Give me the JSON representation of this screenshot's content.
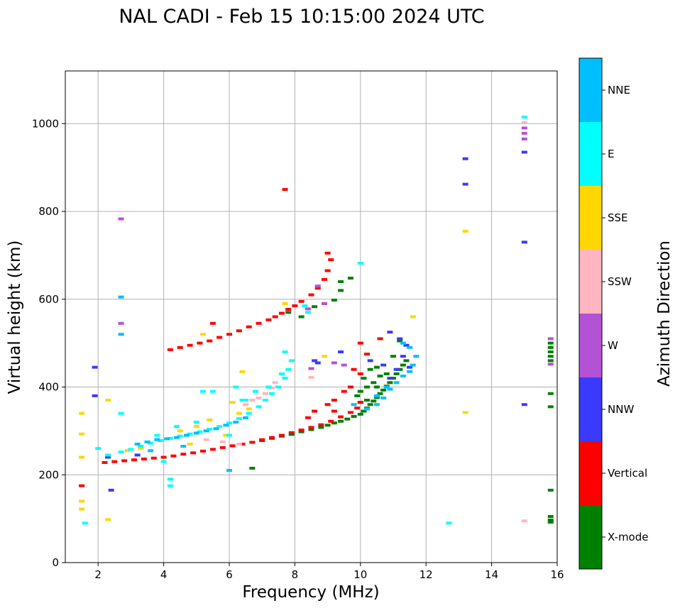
{
  "chart_data": {
    "type": "scatter",
    "title": "NAL CADI - Feb 15 10:15:00 2024 UTC",
    "xlabel": "Frequency (MHz)",
    "ylabel": "Virtual height (km)",
    "xlim": [
      1,
      16
    ],
    "ylim": [
      0,
      1120
    ],
    "xticks": [
      2,
      4,
      6,
      8,
      10,
      12,
      14,
      16
    ],
    "yticks": [
      0,
      200,
      400,
      600,
      800,
      1000
    ],
    "grid": true,
    "colorbar": {
      "label": "Azimuth Direction",
      "categories": [
        "X-mode",
        "Vertical",
        "NNW",
        "W",
        "SSW",
        "SSE",
        "E",
        "NNE"
      ],
      "colors": [
        "#008000",
        "#ff0000",
        "#3a3aff",
        "#b452d6",
        "#ffb6c1",
        "#ffd700",
        "#00ffff",
        "#00bfff"
      ]
    },
    "series": [
      {
        "name": "X-mode",
        "color": "#008000",
        "points": [
          [
            7.0,
            278
          ],
          [
            7.3,
            283
          ],
          [
            7.6,
            288
          ],
          [
            7.9,
            292
          ],
          [
            8.2,
            298
          ],
          [
            8.5,
            303
          ],
          [
            8.8,
            308
          ],
          [
            9.0,
            313
          ],
          [
            9.2,
            318
          ],
          [
            9.4,
            322
          ],
          [
            9.6,
            327
          ],
          [
            9.8,
            333
          ],
          [
            10.0,
            338
          ],
          [
            10.1,
            345
          ],
          [
            10.2,
            352
          ],
          [
            10.3,
            360
          ],
          [
            10.4,
            368
          ],
          [
            10.5,
            376
          ],
          [
            10.6,
            385
          ],
          [
            10.7,
            393
          ],
          [
            10.8,
            402
          ],
          [
            10.9,
            410
          ],
          [
            11.0,
            420
          ],
          [
            11.1,
            430
          ],
          [
            11.2,
            440
          ],
          [
            11.3,
            450
          ],
          [
            11.4,
            460
          ],
          [
            10.0,
            365
          ],
          [
            10.2,
            370
          ],
          [
            10.5,
            400
          ],
          [
            10.8,
            430
          ],
          [
            11.0,
            470
          ],
          [
            11.2,
            505
          ],
          [
            10.5,
            445
          ],
          [
            10.3,
            440
          ],
          [
            10.1,
            420
          ],
          [
            9.9,
            380
          ],
          [
            10.0,
            390
          ],
          [
            10.4,
            410
          ],
          [
            10.6,
            425
          ],
          [
            10.2,
            400
          ],
          [
            8.6,
            583
          ],
          [
            8.9,
            590
          ],
          [
            9.2,
            598
          ],
          [
            9.4,
            620
          ],
          [
            9.4,
            640
          ],
          [
            9.7,
            648
          ],
          [
            8.2,
            560
          ],
          [
            7.8,
            570
          ],
          [
            6.7,
            215
          ],
          [
            15.8,
            480
          ],
          [
            15.8,
            490
          ],
          [
            15.8,
            500
          ],
          [
            15.8,
            470
          ],
          [
            15.8,
            460
          ],
          [
            15.8,
            385
          ],
          [
            15.8,
            355
          ],
          [
            15.8,
            165
          ],
          [
            15.8,
            105
          ],
          [
            15.8,
            97
          ],
          [
            15.8,
            92
          ]
        ]
      },
      {
        "name": "Vertical",
        "color": "#ff0000",
        "points": [
          [
            2.2,
            228
          ],
          [
            2.5,
            230
          ],
          [
            2.8,
            232
          ],
          [
            3.1,
            234
          ],
          [
            3.4,
            236
          ],
          [
            3.7,
            238
          ],
          [
            4.0,
            240
          ],
          [
            4.3,
            243
          ],
          [
            4.6,
            247
          ],
          [
            4.9,
            250
          ],
          [
            5.2,
            254
          ],
          [
            5.5,
            258
          ],
          [
            5.8,
            262
          ],
          [
            6.1,
            266
          ],
          [
            6.4,
            270
          ],
          [
            6.7,
            274
          ],
          [
            7.0,
            280
          ],
          [
            7.3,
            285
          ],
          [
            7.6,
            290
          ],
          [
            7.9,
            296
          ],
          [
            8.2,
            302
          ],
          [
            8.5,
            308
          ],
          [
            8.8,
            314
          ],
          [
            9.1,
            322
          ],
          [
            9.4,
            332
          ],
          [
            9.7,
            342
          ],
          [
            9.9,
            352
          ],
          [
            10.0,
            365
          ],
          [
            9.5,
            390
          ],
          [
            9.2,
            370
          ],
          [
            9.0,
            360
          ],
          [
            9.7,
            400
          ],
          [
            10.0,
            430
          ],
          [
            9.8,
            440
          ],
          [
            10.2,
            475
          ],
          [
            10.0,
            500
          ],
          [
            10.6,
            510
          ],
          [
            8.6,
            345
          ],
          [
            8.4,
            330
          ],
          [
            9.2,
            345
          ],
          [
            4.2,
            485
          ],
          [
            4.5,
            490
          ],
          [
            4.8,
            495
          ],
          [
            5.1,
            500
          ],
          [
            5.4,
            505
          ],
          [
            5.7,
            513
          ],
          [
            6.0,
            520
          ],
          [
            6.3,
            528
          ],
          [
            6.6,
            537
          ],
          [
            6.9,
            545
          ],
          [
            7.2,
            553
          ],
          [
            7.4,
            560
          ],
          [
            7.6,
            568
          ],
          [
            7.8,
            577
          ],
          [
            8.0,
            585
          ],
          [
            8.2,
            595
          ],
          [
            8.5,
            610
          ],
          [
            8.7,
            625
          ],
          [
            8.9,
            645
          ],
          [
            9.0,
            665
          ],
          [
            9.1,
            690
          ],
          [
            9.0,
            705
          ],
          [
            7.7,
            850
          ],
          [
            5.5,
            545
          ],
          [
            1.5,
            175
          ]
        ]
      },
      {
        "name": "NNW",
        "color": "#3a3aff",
        "points": [
          [
            11.2,
            510
          ],
          [
            11.4,
            495
          ],
          [
            11.3,
            470
          ],
          [
            11.1,
            440
          ],
          [
            10.9,
            420
          ],
          [
            11.5,
            445
          ],
          [
            10.7,
            450
          ],
          [
            10.3,
            460
          ],
          [
            9.4,
            480
          ],
          [
            8.6,
            460
          ],
          [
            10.9,
            525
          ],
          [
            3.2,
            245
          ],
          [
            13.2,
            920
          ],
          [
            13.2,
            862
          ],
          [
            15.0,
            730
          ],
          [
            15.0,
            360
          ],
          [
            2.4,
            165
          ],
          [
            1.9,
            380
          ],
          [
            1.9,
            445
          ],
          [
            15.0,
            935
          ],
          [
            8.7,
            455
          ],
          [
            2.3,
            240
          ]
        ]
      },
      {
        "name": "W",
        "color": "#b452d6",
        "points": [
          [
            8.7,
            630
          ],
          [
            15.0,
            990
          ],
          [
            15.0,
            978
          ],
          [
            15.0,
            965
          ],
          [
            8.4,
            578
          ],
          [
            2.7,
            783
          ],
          [
            2.7,
            545
          ],
          [
            8.5,
            442
          ],
          [
            15.8,
            510
          ],
          [
            15.8,
            452
          ],
          [
            9.2,
            455
          ],
          [
            9.5,
            450
          ],
          [
            8.9,
            590
          ]
        ]
      },
      {
        "name": "SSW",
        "color": "#ffb6c1",
        "points": [
          [
            6.9,
            375
          ],
          [
            7.1,
            385
          ],
          [
            7.3,
            398
          ],
          [
            6.7,
            370
          ],
          [
            8.5,
            422
          ],
          [
            15.0,
            1002
          ],
          [
            15.0,
            95
          ],
          [
            7.4,
            410
          ],
          [
            6.5,
            360
          ],
          [
            5.3,
            280
          ],
          [
            5.8,
            275
          ],
          [
            6.3,
            270
          ]
        ]
      },
      {
        "name": "SSE",
        "color": "#ffd700",
        "points": [
          [
            1.5,
            340
          ],
          [
            1.5,
            293
          ],
          [
            1.5,
            240
          ],
          [
            1.5,
            140
          ],
          [
            1.5,
            122
          ],
          [
            2.3,
            98
          ],
          [
            2.3,
            370
          ],
          [
            6.4,
            435
          ],
          [
            6.1,
            365
          ],
          [
            6.3,
            340
          ],
          [
            5.4,
            325
          ],
          [
            5.9,
            290
          ],
          [
            5.0,
            310
          ],
          [
            4.5,
            300
          ],
          [
            3.3,
            260
          ],
          [
            2.9,
            255
          ],
          [
            7.7,
            590
          ],
          [
            13.2,
            755
          ],
          [
            13.2,
            342
          ],
          [
            8.9,
            470
          ],
          [
            11.6,
            560
          ],
          [
            5.2,
            520
          ],
          [
            4.8,
            270
          ],
          [
            6.6,
            350
          ]
        ]
      },
      {
        "name": "E",
        "color": "#00ffff",
        "points": [
          [
            2.3,
            245
          ],
          [
            2.7,
            252
          ],
          [
            3.0,
            258
          ],
          [
            3.3,
            265
          ],
          [
            3.6,
            272
          ],
          [
            3.9,
            278
          ],
          [
            4.2,
            283
          ],
          [
            4.5,
            288
          ],
          [
            4.8,
            293
          ],
          [
            5.1,
            298
          ],
          [
            5.4,
            304
          ],
          [
            5.7,
            310
          ],
          [
            6.0,
            318
          ],
          [
            6.3,
            328
          ],
          [
            6.6,
            340
          ],
          [
            6.9,
            355
          ],
          [
            7.1,
            370
          ],
          [
            7.3,
            385
          ],
          [
            7.5,
            400
          ],
          [
            7.7,
            420
          ],
          [
            7.8,
            440
          ],
          [
            7.9,
            460
          ],
          [
            7.7,
            480
          ],
          [
            6.8,
            390
          ],
          [
            6.5,
            370
          ],
          [
            5.2,
            390
          ],
          [
            5.5,
            390
          ],
          [
            4.2,
            190
          ],
          [
            4.2,
            175
          ],
          [
            2.7,
            340
          ],
          [
            1.6,
            90
          ],
          [
            12.7,
            90
          ],
          [
            15.0,
            1015
          ],
          [
            10.0,
            682
          ],
          [
            8.4,
            570
          ],
          [
            8.3,
            585
          ],
          [
            2.0,
            260
          ],
          [
            3.8,
            290
          ],
          [
            4.4,
            310
          ],
          [
            5.0,
            320
          ],
          [
            6.0,
            290
          ],
          [
            6.4,
            370
          ],
          [
            7.2,
            400
          ],
          [
            7.6,
            430
          ],
          [
            6.2,
            400
          ],
          [
            4.0,
            230
          ]
        ]
      },
      {
        "name": "NNE",
        "color": "#00bfff",
        "points": [
          [
            3.2,
            270
          ],
          [
            3.5,
            275
          ],
          [
            3.8,
            280
          ],
          [
            4.1,
            282
          ],
          [
            4.4,
            285
          ],
          [
            4.7,
            290
          ],
          [
            5.0,
            295
          ],
          [
            5.3,
            300
          ],
          [
            5.6,
            305
          ],
          [
            5.9,
            313
          ],
          [
            6.2,
            320
          ],
          [
            6.5,
            330
          ],
          [
            10.5,
            360
          ],
          [
            10.7,
            375
          ],
          [
            10.9,
            395
          ],
          [
            11.1,
            410
          ],
          [
            11.3,
            425
          ],
          [
            11.5,
            435
          ],
          [
            11.6,
            450
          ],
          [
            11.7,
            470
          ],
          [
            11.5,
            490
          ],
          [
            11.3,
            500
          ],
          [
            10.5,
            380
          ],
          [
            10.8,
            400
          ],
          [
            9.8,
            360
          ],
          [
            10.2,
            350
          ],
          [
            4.6,
            265
          ],
          [
            3.6,
            255
          ],
          [
            2.7,
            520
          ],
          [
            2.7,
            605
          ],
          [
            6.0,
            210
          ]
        ]
      }
    ]
  }
}
